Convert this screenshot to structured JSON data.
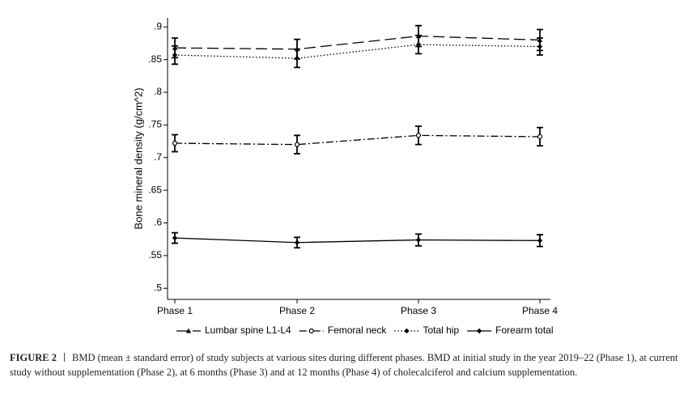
{
  "chart_data": {
    "type": "line",
    "y_label": "Bone mineral density (g/cm^2)",
    "categories": [
      "Phase 1",
      "Phase 2",
      "Phase 3",
      "Phase 4"
    ],
    "ylim": [
      0.483,
      0.914
    ],
    "yticks": [
      {
        "value": 0.5,
        "label": ".5"
      },
      {
        "value": 0.55,
        "label": ".55"
      },
      {
        "value": 0.6,
        "label": ".6"
      },
      {
        "value": 0.65,
        "label": ".65"
      },
      {
        "value": 0.7,
        "label": ".7"
      },
      {
        "value": 0.75,
        "label": ".75"
      },
      {
        "value": 0.8,
        "label": ".8"
      },
      {
        "value": 0.85,
        "label": ".85"
      },
      {
        "value": 0.9,
        "label": ".9"
      }
    ],
    "series": [
      {
        "name": "Lumbar spine L1-L4",
        "color": "#000000",
        "line_style": "dashed",
        "marker": "triangle",
        "values": [
          0.868,
          0.866,
          0.886,
          0.88
        ],
        "errors": [
          0.015,
          0.015,
          0.016,
          0.016
        ]
      },
      {
        "name": "Femoral neck",
        "color": "#000000",
        "line_style": "dashdot",
        "marker": "circle",
        "values": [
          0.722,
          0.72,
          0.734,
          0.732
        ],
        "errors": [
          0.013,
          0.014,
          0.014,
          0.014
        ]
      },
      {
        "name": "Total hip",
        "color": "#000000",
        "line_style": "dotted",
        "marker": "diamond",
        "values": [
          0.857,
          0.852,
          0.873,
          0.87
        ],
        "errors": [
          0.014,
          0.014,
          0.014,
          0.013
        ]
      },
      {
        "name": "Forearm total",
        "color": "#000000",
        "line_style": "solid",
        "marker": "diamond",
        "values": [
          0.577,
          0.57,
          0.574,
          0.573
        ],
        "errors": [
          0.008,
          0.008,
          0.009,
          0.009
        ]
      }
    ],
    "legend_position": "bottom",
    "figure_label": "FIGURE 2",
    "caption": "BMD (mean ± standard error) of study subjects at various sites during different phases. BMD at initial study in the year 2019–22 (Phase 1), at current study without supplementation (Phase 2), at 6 months (Phase 3) and at 12 months (Phase 4) of cholecalciferol and calcium supplementation."
  }
}
